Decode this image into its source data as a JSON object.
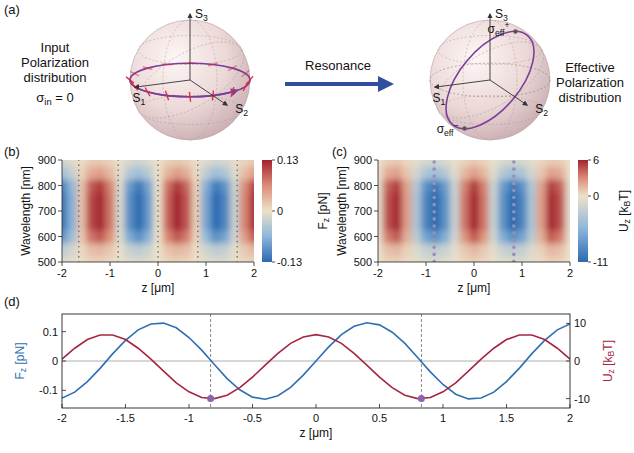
{
  "diagram": {
    "panel": "(a)",
    "input_label": "Input Polarization distribution",
    "input_sigma": [
      "σ",
      {
        "sub": "in"
      },
      " = 0"
    ],
    "arrow_label": "Resonance",
    "output_label": "Effective Polarization distribution",
    "axes": [
      [
        "S",
        {
          "sub": "1"
        }
      ],
      [
        "S",
        {
          "sub": "2"
        }
      ],
      [
        "S",
        {
          "sub": "3"
        }
      ]
    ],
    "effective_states": [
      [
        "σ",
        {
          "sub": "eff"
        },
        {
          "sup": "+"
        }
      ],
      [
        "σ",
        {
          "sub": "eff"
        },
        {
          "sup": "−"
        }
      ]
    ]
  },
  "chart_data": [
    {
      "type": "heatmap",
      "panel": "(b)",
      "x_label": "z [μm]",
      "y_label": "Wavelength [nm]",
      "x": [
        -2,
        -1.8,
        -1.6,
        -1.4,
        -1.2,
        -1,
        -0.8,
        -0.6,
        -0.4,
        -0.2,
        0,
        0.2,
        0.4,
        0.6,
        0.8,
        1,
        1.2,
        1.4,
        1.6,
        1.8,
        2
      ],
      "y": [
        500,
        550,
        600,
        650,
        700,
        750,
        800,
        850,
        900
      ],
      "cells": [
        [
          -0.013,
          -0.007,
          0.003,
          0.011,
          0.013,
          0.008,
          -0.001,
          -0.01,
          -0.013,
          -0.009,
          0,
          0.009,
          0.013,
          0.01,
          0.001,
          -0.008,
          -0.013,
          -0.011,
          -0.003,
          0.007,
          0.013
        ],
        [
          -0.032,
          -0.018,
          0.006,
          0.027,
          0.032,
          0.02,
          -0.003,
          -0.025,
          -0.033,
          -0.023,
          0,
          0.023,
          0.033,
          0.025,
          0.003,
          -0.02,
          -0.032,
          -0.027,
          -0.006,
          0.018,
          0.032
        ],
        [
          -0.095,
          -0.053,
          0.019,
          0.08,
          0.097,
          0.06,
          -0.009,
          -0.074,
          -0.098,
          -0.068,
          0,
          0.068,
          0.098,
          0.074,
          0.009,
          -0.06,
          -0.097,
          -0.08,
          -0.019,
          0.053,
          0.095
        ],
        [
          -0.126,
          -0.07,
          0.025,
          0.106,
          0.129,
          0.08,
          -0.012,
          -0.098,
          -0.13,
          -0.09,
          0,
          0.09,
          0.13,
          0.098,
          0.012,
          -0.08,
          -0.129,
          -0.106,
          -0.025,
          0.07,
          0.126
        ],
        [
          -0.126,
          -0.07,
          0.025,
          0.106,
          0.129,
          0.08,
          -0.012,
          -0.098,
          -0.13,
          -0.09,
          0,
          0.09,
          0.13,
          0.098,
          0.012,
          -0.08,
          -0.129,
          -0.106,
          -0.025,
          0.07,
          0.126
        ],
        [
          -0.126,
          -0.07,
          0.025,
          0.106,
          0.129,
          0.08,
          -0.012,
          -0.098,
          -0.13,
          -0.09,
          0,
          0.09,
          0.13,
          0.098,
          0.012,
          -0.08,
          -0.129,
          -0.106,
          -0.025,
          0.07,
          0.126
        ],
        [
          -0.113,
          -0.063,
          0.023,
          0.095,
          0.116,
          0.072,
          -0.011,
          -0.088,
          -0.117,
          -0.081,
          0,
          0.081,
          0.117,
          0.088,
          0.011,
          -0.072,
          -0.116,
          -0.095,
          -0.023,
          0.063,
          0.113
        ],
        [
          -0.05,
          -0.028,
          0.01,
          0.042,
          0.052,
          0.032,
          -0.005,
          -0.039,
          -0.052,
          -0.036,
          0,
          0.036,
          0.052,
          0.039,
          0.005,
          -0.032,
          -0.052,
          -0.042,
          -0.01,
          0.028,
          0.05
        ],
        [
          -0.019,
          -0.011,
          0.004,
          0.016,
          0.019,
          0.012,
          -0.002,
          -0.015,
          -0.02,
          -0.014,
          0,
          0.014,
          0.02,
          0.015,
          0.002,
          -0.012,
          -0.019,
          -0.016,
          -0.004,
          0.011,
          0.019
        ]
      ],
      "xlim": [
        -2,
        2
      ],
      "ylim": [
        500,
        900
      ],
      "xticks": [
        -2,
        -1,
        0,
        1,
        2
      ],
      "yticks": [
        500,
        600,
        700,
        800,
        900
      ],
      "colorbar": {
        "label": [
          "F",
          {
            "sub": "z"
          },
          " [pN]"
        ],
        "range": [
          -0.13,
          0.13
        ],
        "ticks": [
          -0.13,
          0,
          0.13
        ]
      },
      "zero_crossings": [
        -1.65,
        -0.83,
        0,
        0.83,
        1.65
      ]
    },
    {
      "type": "heatmap",
      "panel": "(c)",
      "x_label": "z [μm]",
      "y_label": "Wavelength [nm]",
      "x": [
        -2,
        -1.8,
        -1.6,
        -1.4,
        -1.2,
        -1,
        -0.8,
        -0.6,
        -0.4,
        -0.2,
        0,
        0.2,
        0.4,
        0.6,
        0.8,
        1,
        1.2,
        1.4,
        1.6,
        1.8,
        2
      ],
      "y": [
        500,
        550,
        600,
        650,
        700,
        750,
        800,
        850,
        900
      ],
      "cells": [
        [
          -0.1,
          0.5,
          0.6,
          0.2,
          -0.4,
          -0.9,
          -1.1,
          -0.8,
          -0.2,
          0.4,
          0.6,
          0.4,
          -0.2,
          -0.8,
          -1.1,
          -0.9,
          -0.4,
          0.2,
          0.6,
          0.5,
          -0.1
        ],
        [
          -0.1,
          1.2,
          1.5,
          0.6,
          -0.9,
          -2.3,
          -2.7,
          -2,
          -0.5,
          0.9,
          1.5,
          0.9,
          -0.5,
          -2,
          -2.7,
          -2.3,
          -0.9,
          0.6,
          1.5,
          1.2,
          -0.1
        ],
        [
          -0.4,
          3.5,
          4.4,
          1.8,
          -2.8,
          -6.9,
          -8.2,
          -6.1,
          -1.6,
          2.7,
          4.5,
          2.7,
          -1.6,
          -6.1,
          -8.2,
          -6.9,
          -2.8,
          1.8,
          4.4,
          3.5,
          -0.4
        ],
        [
          -0.5,
          4.7,
          5.9,
          2.4,
          -3.7,
          -9.2,
          -11,
          -8.1,
          -2.1,
          3.7,
          6,
          3.7,
          -2.1,
          -8.1,
          -11,
          -9.2,
          -3.7,
          2.4,
          5.9,
          4.7,
          -0.5
        ],
        [
          -0.5,
          4.7,
          5.9,
          2.4,
          -3.7,
          -9.2,
          -11,
          -8.1,
          -2.1,
          3.7,
          6,
          3.7,
          -2.1,
          -8.1,
          -11,
          -9.2,
          -3.7,
          2.4,
          5.9,
          4.7,
          -0.5
        ],
        [
          -0.5,
          4.7,
          5.9,
          2.4,
          -3.7,
          -9.2,
          -11,
          -8.1,
          -2.1,
          3.7,
          6,
          3.7,
          -2.1,
          -8.1,
          -11,
          -9.2,
          -3.7,
          2.4,
          5.9,
          4.7,
          -0.5
        ],
        [
          -0.5,
          4.2,
          5.3,
          2.2,
          -3.3,
          -8.3,
          -9.9,
          -7.3,
          -1.9,
          3.3,
          5.4,
          3.3,
          -1.9,
          -7.3,
          -9.9,
          -8.3,
          -3.3,
          2.2,
          5.3,
          4.2,
          -0.5
        ],
        [
          -0.2,
          1.9,
          2.3,
          1,
          -1.5,
          -3.7,
          -4.4,
          -3.2,
          -0.8,
          1.5,
          2.4,
          1.5,
          -0.8,
          -3.2,
          -4.4,
          -3.7,
          -1.5,
          1,
          2.3,
          1.9,
          -0.2
        ],
        [
          -0.1,
          0.7,
          0.9,
          0.4,
          -0.6,
          -1.4,
          -1.6,
          -1.2,
          -0.3,
          0.5,
          0.9,
          0.5,
          -0.3,
          -1.2,
          -1.6,
          -1.4,
          -0.6,
          0.4,
          0.9,
          0.7,
          -0.1
        ]
      ],
      "xlim": [
        -2,
        2
      ],
      "ylim": [
        500,
        900
      ],
      "xticks": [
        -2,
        -1,
        0,
        1,
        2
      ],
      "yticks": [
        500,
        600,
        700,
        800,
        900
      ],
      "colorbar": {
        "label": [
          "U",
          {
            "sub": "z"
          },
          " [k",
          {
            "sub": "B"
          },
          "T]"
        ],
        "range": [
          -11,
          6
        ],
        "ticks": [
          -11,
          0,
          6
        ]
      },
      "equilibria": [
        -0.83,
        0.83
      ]
    },
    {
      "type": "line",
      "panel": "(d)",
      "x_label": "z [μm]",
      "x": [
        -2,
        -1.9,
        -1.8,
        -1.7,
        -1.6,
        -1.5,
        -1.4,
        -1.3,
        -1.2,
        -1.1,
        -1,
        -0.9,
        -0.8,
        -0.7,
        -0.6,
        -0.5,
        -0.4,
        -0.3,
        -0.2,
        -0.1,
        0,
        0.1,
        0.2,
        0.3,
        0.4,
        0.5,
        0.6,
        0.7,
        0.8,
        0.9,
        1,
        1.1,
        1.2,
        1.3,
        1.4,
        1.5,
        1.6,
        1.7,
        1.8,
        1.9,
        2
      ],
      "xlim": [
        -2,
        2
      ],
      "xticks": [
        -2,
        -1.5,
        -1,
        -0.5,
        0,
        0.5,
        1,
        1.5,
        2
      ],
      "ylim": [
        -0.16,
        0.16
      ],
      "yticks": [
        -0.1,
        0,
        0.1
      ],
      "y_label": [
        "F",
        {
          "sub": "z"
        },
        " [pN]"
      ],
      "y2lim": [
        -12.5,
        12.5
      ],
      "y2ticks": [
        -10,
        0,
        10
      ],
      "y2_label": [
        "U",
        {
          "sub": "z"
        },
        " [k",
        {
          "sub": "B"
        },
        "T]"
      ],
      "series": [
        {
          "color": "#2f6fb3",
          "values": [
            -0.126,
            -0.106,
            -0.07,
            -0.025,
            0.025,
            0.07,
            0.106,
            0.126,
            0.129,
            0.113,
            0.08,
            0.037,
            -0.012,
            -0.06,
            -0.098,
            -0.123,
            -0.13,
            -0.118,
            -0.09,
            -0.048,
            0,
            0.048,
            0.09,
            0.118,
            0.13,
            0.123,
            0.098,
            0.06,
            0.012,
            -0.037,
            -0.08,
            -0.113,
            -0.129,
            -0.126,
            -0.106,
            -0.07,
            -0.025,
            0.025,
            0.07,
            0.106,
            0.126
          ]
        },
        {
          "color": "#a6263f",
          "axis": "y2",
          "values": [
            0.5,
            3.4,
            5.7,
            6.9,
            6.9,
            5.7,
            3.4,
            0.5,
            -2.7,
            -5.8,
            -8.2,
            -9.7,
            -10,
            -9.1,
            -7.1,
            -4.3,
            -1.1,
            2,
            4.7,
            6.4,
            7,
            6.4,
            4.7,
            2,
            -1.1,
            -4.3,
            -7.1,
            -9.1,
            -10,
            -9.7,
            -8.2,
            -5.8,
            -2.7,
            0.5,
            3.4,
            5.7,
            6.9,
            6.9,
            5.7,
            3.4,
            0.5
          ]
        }
      ],
      "equilibria": {
        "x": [
          -0.83,
          0.83
        ],
        "y": [
          -10,
          -10
        ]
      }
    }
  ]
}
